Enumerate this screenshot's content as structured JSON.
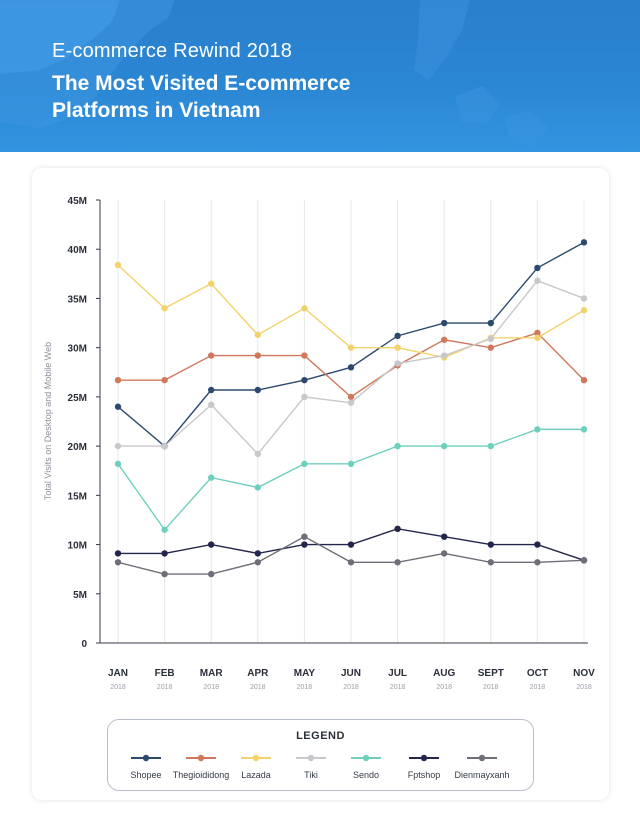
{
  "header": {
    "subtitle": "E-commerce Rewind 2018",
    "title": "The Most Visited E-commerce Platforms in Vietnam"
  },
  "legend": {
    "title": "LEGEND"
  },
  "colors": {
    "header_bg": "#2a86d3",
    "Shopee": "#2c4a6e",
    "Thegioididong": "#d0785c",
    "Lazada": "#f2d36b",
    "Tiki": "#c8c8cc",
    "Sendo": "#6fcfbf",
    "Fptshop": "#23264a",
    "Dienmayxanh": "#6e6e78"
  },
  "chart_data": {
    "type": "line",
    "title": "",
    "xlabel": "",
    "ylabel": "Total Visits on Desktop and Mobile Web",
    "categories": [
      "JAN",
      "FEB",
      "MAR",
      "APR",
      "MAY",
      "JUN",
      "JUL",
      "AUG",
      "SEPT",
      "OCT",
      "NOV"
    ],
    "category_sublabel": "2018",
    "yticks": [
      "0",
      "5M",
      "10M",
      "15M",
      "20M",
      "25M",
      "30M",
      "35M",
      "40M",
      "45M"
    ],
    "ylim": [
      0,
      45
    ],
    "y_unit": "M",
    "grid": "vertical",
    "legend_position": "bottom",
    "series": [
      {
        "name": "Shopee",
        "values": [
          24,
          20,
          25.7,
          25.7,
          26.7,
          28,
          31.2,
          32.5,
          32.5,
          38.1,
          40.7
        ]
      },
      {
        "name": "Thegioididong",
        "values": [
          26.7,
          26.7,
          29.2,
          29.2,
          29.2,
          25,
          28.2,
          30.8,
          30,
          31.5,
          26.7
        ]
      },
      {
        "name": "Lazada",
        "values": [
          38.4,
          34,
          36.5,
          31.3,
          34,
          30,
          30,
          29,
          31,
          31,
          33.8
        ]
      },
      {
        "name": "Tiki",
        "values": [
          20,
          20,
          24.2,
          19.2,
          25,
          24.4,
          28.4,
          29.2,
          30.9,
          36.8,
          35
        ]
      },
      {
        "name": "Sendo",
        "values": [
          18.2,
          11.5,
          16.8,
          15.8,
          18.2,
          18.2,
          20,
          20,
          20,
          21.7,
          21.7
        ]
      },
      {
        "name": "Fptshop",
        "values": [
          9.1,
          9.1,
          10,
          9.1,
          10,
          10,
          11.6,
          10.8,
          10,
          10,
          8.4
        ]
      },
      {
        "name": "Dienmayxanh",
        "values": [
          8.2,
          7,
          7,
          8.2,
          10.8,
          8.2,
          8.2,
          9.1,
          8.2,
          8.2,
          8.4
        ]
      }
    ]
  }
}
